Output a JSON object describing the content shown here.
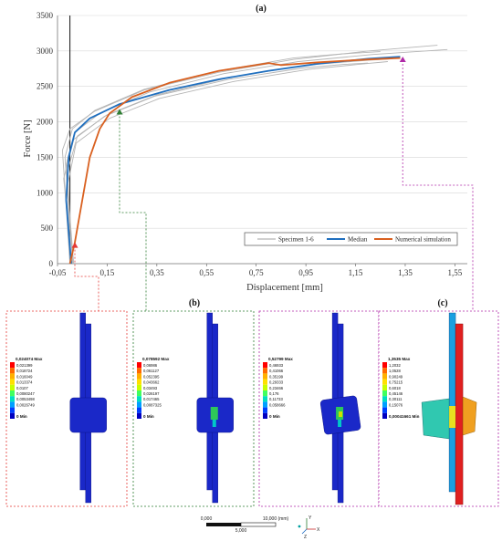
{
  "chart_data": {
    "type": "line",
    "title": "(a)",
    "xlabel": "Displacement [mm]",
    "ylabel": "Force [N]",
    "xlim": [
      -0.05,
      1.6
    ],
    "ylim": [
      0,
      3500
    ],
    "xticks": [
      -0.05,
      0.15,
      0.35,
      0.55,
      0.75,
      0.95,
      1.15,
      1.35,
      1.55
    ],
    "xtick_labels": [
      "-0,05",
      "0,15",
      "0,35",
      "0,55",
      "0,75",
      "0,95",
      "1,15",
      "1,35",
      "1,55"
    ],
    "yticks": [
      0,
      500,
      1000,
      1500,
      2000,
      2500,
      3000,
      3500
    ],
    "ytick_labels": [
      "0",
      "500",
      "1000",
      "1500",
      "2000",
      "2500",
      "3000",
      "3500"
    ],
    "grid": "horizontal",
    "legend_position": "bottom-right",
    "series": [
      {
        "name": "Specimen 1-6",
        "color": "#b5b5b5",
        "points": [
          [
            0.0,
            0
          ],
          [
            -0.03,
            1600
          ],
          [
            0.0,
            1900
          ],
          [
            0.1,
            2150
          ],
          [
            0.3,
            2450
          ],
          [
            0.6,
            2700
          ],
          [
            0.9,
            2880
          ],
          [
            1.2,
            3000
          ],
          [
            1.48,
            3080
          ]
        ]
      },
      {
        "name": "",
        "color": "#b5b5b5",
        "points": [
          [
            0.005,
            0
          ],
          [
            -0.015,
            1400
          ],
          [
            0.02,
            1850
          ],
          [
            0.12,
            2120
          ],
          [
            0.32,
            2420
          ],
          [
            0.62,
            2680
          ],
          [
            0.92,
            2850
          ],
          [
            1.22,
            2950
          ],
          [
            1.52,
            3020
          ]
        ]
      },
      {
        "name": "",
        "color": "#b5b5b5",
        "points": [
          [
            0.01,
            0
          ],
          [
            -0.01,
            1300
          ],
          [
            0.03,
            1800
          ],
          [
            0.15,
            2100
          ],
          [
            0.35,
            2380
          ],
          [
            0.65,
            2630
          ],
          [
            0.95,
            2800
          ],
          [
            1.2,
            2870
          ],
          [
            1.3,
            2890
          ]
        ]
      },
      {
        "name": "",
        "color": "#b5b5b5",
        "points": [
          [
            0.012,
            0
          ],
          [
            -0.02,
            1500
          ],
          [
            0.01,
            1900
          ],
          [
            0.1,
            2160
          ],
          [
            0.3,
            2460
          ],
          [
            0.6,
            2720
          ],
          [
            0.9,
            2900
          ],
          [
            1.1,
            2960
          ],
          [
            1.25,
            2990
          ]
        ]
      },
      {
        "name": "",
        "color": "#b5b5b5",
        "points": [
          [
            0.008,
            0
          ],
          [
            -0.025,
            1200
          ],
          [
            0.015,
            1750
          ],
          [
            0.14,
            2080
          ],
          [
            0.34,
            2360
          ],
          [
            0.64,
            2600
          ],
          [
            0.94,
            2760
          ],
          [
            1.1,
            2810
          ],
          [
            1.2,
            2830
          ]
        ]
      },
      {
        "name": "",
        "color": "#b5b5b5",
        "points": [
          [
            0.015,
            0
          ],
          [
            -0.01,
            1100
          ],
          [
            0.025,
            1700
          ],
          [
            0.16,
            2050
          ],
          [
            0.36,
            2330
          ],
          [
            0.66,
            2570
          ],
          [
            0.96,
            2740
          ],
          [
            1.16,
            2810
          ],
          [
            1.28,
            2850
          ]
        ]
      },
      {
        "name": "Median",
        "color": "#1f6fbf",
        "points": [
          [
            0.005,
            0
          ],
          [
            -0.015,
            900
          ],
          [
            -0.005,
            1500
          ],
          [
            0.02,
            1850
          ],
          [
            0.08,
            2050
          ],
          [
            0.2,
            2250
          ],
          [
            0.4,
            2450
          ],
          [
            0.6,
            2600
          ],
          [
            0.8,
            2720
          ],
          [
            1.0,
            2820
          ],
          [
            1.2,
            2890
          ],
          [
            1.33,
            2920
          ]
        ]
      },
      {
        "name": "Numerical simulation",
        "color": "#d9601f",
        "points": [
          [
            0.0,
            0
          ],
          [
            0.02,
            300
          ],
          [
            0.05,
            900
          ],
          [
            0.08,
            1500
          ],
          [
            0.12,
            1900
          ],
          [
            0.16,
            2120
          ],
          [
            0.25,
            2350
          ],
          [
            0.4,
            2550
          ],
          [
            0.6,
            2720
          ],
          [
            0.8,
            2830
          ],
          [
            0.85,
            2800
          ],
          [
            1.0,
            2840
          ],
          [
            1.2,
            2880
          ],
          [
            1.33,
            2900
          ]
        ]
      }
    ],
    "markers": [
      {
        "x": 0.02,
        "y": 250,
        "color": "#e53935"
      },
      {
        "x": 0.2,
        "y": 2130,
        "color": "#2e7d32"
      },
      {
        "x": 1.34,
        "y": 2870,
        "color": "#b02aa8"
      }
    ]
  },
  "sub_labels": {
    "b": "(b)",
    "c": "(c)"
  },
  "panels": [
    {
      "max_label": "0,024074 Max",
      "min_label": "0 Min",
      "legend": [
        "0,021399",
        "0,018724",
        "0,016049",
        "0,013374",
        "0,0107",
        "0,0080247",
        "0,0053498",
        "0,0026749"
      ],
      "colors": [
        "#ff0000",
        "#ff6a00",
        "#ffb000",
        "#ffe000",
        "#c8ff00",
        "#40ff60",
        "#00e0c0",
        "#00a0ff",
        "#0040ff",
        "#0000c0"
      ]
    },
    {
      "max_label": "0,078592 Max",
      "min_label": "0 Min",
      "legend": [
        "0,06986",
        "0,061127",
        "0,052395",
        "0,043662",
        "0,03493",
        "0,026197",
        "0,017465",
        "0,0087325"
      ],
      "colors": [
        "#ff0000",
        "#ff6a00",
        "#ffb000",
        "#ffe000",
        "#c8ff00",
        "#40ff60",
        "#00e0c0",
        "#00a0ff",
        "#0040ff",
        "#0000c0"
      ]
    },
    {
      "max_label": "0,52799 Max",
      "min_label": "0 Min",
      "legend": [
        "0,46933",
        "0,41066",
        "0,35199",
        "0,29333",
        "0,23466",
        "0,176",
        "0,11733",
        "0,058666"
      ],
      "colors": [
        "#ff0000",
        "#ff6a00",
        "#ffb000",
        "#ffe000",
        "#c8ff00",
        "#40ff60",
        "#00e0c0",
        "#00a0ff",
        "#0040ff",
        "#0000c0"
      ]
    },
    {
      "max_label": "1,3535 Max",
      "min_label": "0,00041661 Min",
      "legend": [
        "1,2032",
        "1,0528",
        "0,90249",
        "0,75215",
        "0,6018",
        "0,45146",
        "0,30111",
        "0,15076"
      ],
      "colors": [
        "#ff0000",
        "#ff6a00",
        "#ffb000",
        "#ffe000",
        "#c8ff00",
        "#40ff60",
        "#00e0c0",
        "#00a0ff",
        "#0040ff",
        "#0000c0"
      ]
    }
  ],
  "scale_bar": {
    "left": "0,000",
    "right": "10,000 (mm)",
    "mid": "5,000"
  },
  "triad": {
    "x": "X",
    "y": "Y",
    "z": "Z"
  }
}
